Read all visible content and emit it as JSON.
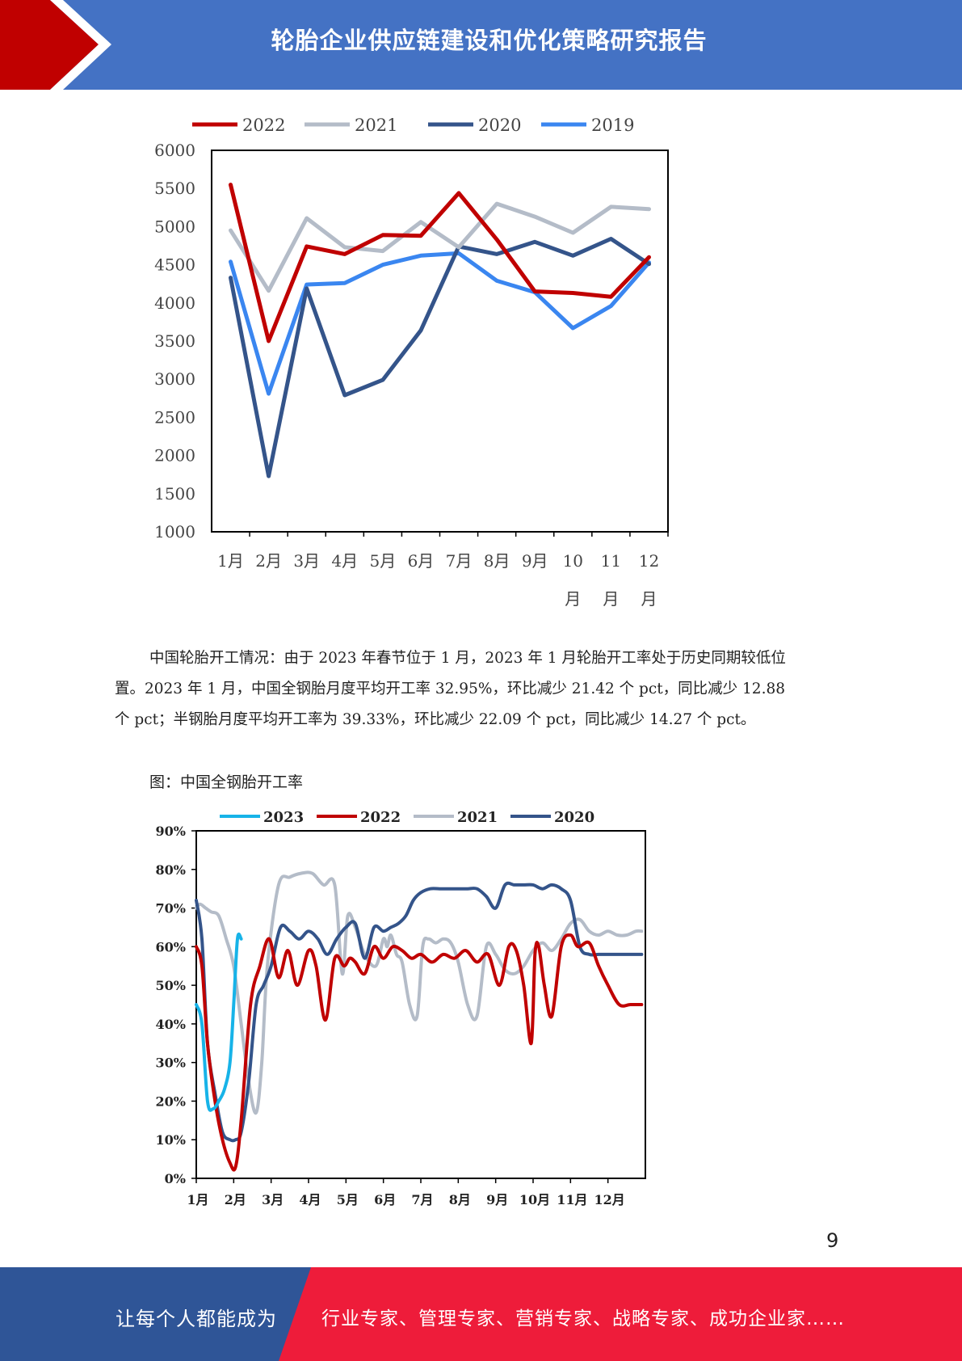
{
  "header": {
    "title": "轮胎企业供应链建设和优化策略研究报告"
  },
  "chart1": {
    "legend": [
      "2022",
      "2021",
      "2020",
      "2019"
    ],
    "yticks": [
      "6000",
      "5500",
      "5000",
      "4500",
      "4000",
      "3500",
      "3000",
      "2500",
      "2000",
      "1500",
      "1000"
    ],
    "xticks": [
      "1月",
      "2月",
      "3月",
      "4月",
      "5月",
      "6月",
      "7月",
      "8月",
      "9月",
      "10月",
      "11月",
      "12月"
    ]
  },
  "paragraph": {
    "line1": "中国轮胎开工情况：由于 2023 年春节位于 1 月，2023 年 1 月轮胎开工率处于历史同期较低位",
    "line2": "置。2023 年 1 月，中国全钢胎月度平均开工率 32.95%，环比减少 21.42 个 pct，同比减少 12.88",
    "line3": "个 pct；半钢胎月度平均开工率为 39.33%，环比减少 22.09 个 pct，同比减少 14.27 个 pct。"
  },
  "caption": "图：中国全钢胎开工率",
  "chart2": {
    "legend": [
      "2023",
      "2022",
      "2021",
      "2020"
    ],
    "yticks": [
      "90%",
      "80%",
      "70%",
      "60%",
      "50%",
      "40%",
      "30%",
      "20%",
      "10%",
      "0%"
    ],
    "xticks": [
      "1月",
      "2月"
    ]
  },
  "page_number": "9",
  "footer": {
    "left": "让每个人都能成为",
    "right": "行业专家、管理专家、营销专家、战略专家、成功企业家……"
  },
  "colors": {
    "header_blue": "#4472c4",
    "header_red": "#c00000",
    "footer_blue": "#2f5597",
    "footer_red": "#ee1c3a",
    "y2022": "#c00000",
    "y2021": "#b4bcc8",
    "y2020": "#34548a",
    "y2019": "#3a86f0",
    "y2023": "#17b3e8"
  },
  "chart_data": [
    {
      "type": "line",
      "title": "",
      "xlabel": "",
      "ylabel": "",
      "categories": [
        "1月",
        "2月",
        "3月",
        "4月",
        "5月",
        "6月",
        "7月",
        "8月",
        "9月",
        "10月",
        "11月",
        "12月"
      ],
      "ylim": [
        1000,
        6000
      ],
      "legend": "top",
      "series": [
        {
          "name": "2022",
          "color": "#c00000",
          "values": [
            5550,
            3500,
            4740,
            4640,
            4890,
            4880,
            5440,
            4830,
            4150,
            4130,
            4080,
            4600
          ]
        },
        {
          "name": "2021",
          "color": "#b4bcc8",
          "values": [
            4950,
            4160,
            5110,
            4730,
            4680,
            5060,
            4730,
            5300,
            5130,
            4920,
            5260,
            5230
          ]
        },
        {
          "name": "2020",
          "color": "#34548a",
          "values": [
            4330,
            1730,
            4190,
            2790,
            2990,
            3640,
            4740,
            4640,
            4800,
            4620,
            4840,
            4510
          ]
        },
        {
          "name": "2019",
          "color": "#3a86f0",
          "values": [
            4540,
            2810,
            4240,
            4260,
            4500,
            4620,
            4650,
            4290,
            4140,
            3670,
            3960,
            4530
          ]
        }
      ]
    },
    {
      "type": "line",
      "title": "",
      "xlabel": "",
      "ylabel": "",
      "categories": [
        "1月",
        "2月",
        "3月",
        "4月",
        "5月",
        "6月",
        "7月",
        "8月",
        "9月",
        "10月",
        "11月",
        "12月"
      ],
      "ylim": [
        0,
        90
      ],
      "legend": "top",
      "series": [
        {
          "name": "2023",
          "color": "#17b3e8",
          "x": [
            0.0,
            0.15,
            0.3,
            0.45,
            0.6,
            0.75,
            0.9,
            1.0,
            1.1,
            1.2
          ],
          "values": [
            45,
            40,
            20,
            18,
            20,
            23,
            30,
            45,
            62,
            62
          ]
        },
        {
          "name": "2022",
          "color": "#c00000",
          "x": [
            0.0,
            0.15,
            0.3,
            0.5,
            0.7,
            0.9,
            1.05,
            1.2,
            1.45,
            1.7,
            1.95,
            2.2,
            2.45,
            2.7,
            3.0,
            3.2,
            3.45,
            3.7,
            3.95,
            4.1,
            4.25,
            4.5,
            4.75,
            5.0,
            5.25,
            5.5,
            5.75,
            6.0,
            6.3,
            6.6,
            6.9,
            7.2,
            7.5,
            7.8,
            8.1,
            8.35,
            8.55,
            8.75,
            8.95,
            9.05,
            9.15,
            9.3,
            9.5,
            9.75,
            10.0,
            10.2,
            10.5,
            10.75,
            11.0,
            11.3,
            11.6,
            11.9
          ],
          "values": [
            60,
            55,
            35,
            20,
            10,
            4,
            3,
            15,
            45,
            55,
            62,
            52,
            59,
            50,
            59,
            55,
            41,
            57,
            55,
            57,
            56,
            53,
            60,
            57,
            60,
            59,
            57,
            58,
            56,
            58,
            57,
            59,
            56,
            58,
            50,
            60,
            59,
            50,
            35,
            58,
            60,
            50,
            42,
            60,
            63,
            60,
            61,
            55,
            50,
            45,
            45,
            45
          ]
        },
        {
          "name": "2021",
          "color": "#b4bcc8",
          "x": [
            0.0,
            0.1,
            0.25,
            0.4,
            0.6,
            0.8,
            1.0,
            1.2,
            1.4,
            1.6,
            1.75,
            1.9,
            2.2,
            2.5,
            2.8,
            3.1,
            3.4,
            3.7,
            3.9,
            4.05,
            4.25,
            4.5,
            4.8,
            5.0,
            5.1,
            5.2,
            5.35,
            5.5,
            5.7,
            5.9,
            6.05,
            6.2,
            6.4,
            6.6,
            6.8,
            7.0,
            7.25,
            7.5,
            7.75,
            8.0,
            8.25,
            8.5,
            8.75,
            9.0,
            9.25,
            9.5,
            9.75,
            10.0,
            10.25,
            10.5,
            10.75,
            11.0,
            11.25,
            11.5,
            11.75,
            11.9
          ],
          "values": [
            70,
            71,
            70,
            69,
            68,
            62,
            55,
            40,
            25,
            17,
            30,
            55,
            76,
            78,
            79,
            79,
            76,
            76,
            53,
            68,
            65,
            58,
            55,
            62,
            60,
            63,
            58,
            56,
            45,
            42,
            60,
            62,
            61,
            62,
            61,
            56,
            45,
            42,
            60,
            58,
            54,
            53,
            55,
            59,
            61,
            59,
            62,
            66,
            67,
            64,
            63,
            64,
            63,
            63,
            64,
            64
          ]
        },
        {
          "name": "2020",
          "color": "#34548a",
          "x": [
            0.0,
            0.15,
            0.3,
            0.5,
            0.7,
            0.9,
            1.05,
            1.2,
            1.4,
            1.6,
            1.8,
            2.0,
            2.25,
            2.5,
            2.75,
            3.0,
            3.25,
            3.5,
            3.75,
            4.0,
            4.25,
            4.5,
            4.75,
            5.0,
            5.2,
            5.4,
            5.6,
            5.8,
            6.0,
            6.25,
            6.5,
            6.75,
            7.0,
            7.25,
            7.5,
            7.75,
            8.0,
            8.25,
            8.5,
            8.75,
            9.0,
            9.25,
            9.5,
            9.75,
            10.0,
            10.25,
            10.5,
            10.75,
            11.0,
            11.25,
            11.5,
            11.75,
            11.9
          ],
          "values": [
            72,
            62,
            35,
            22,
            12,
            10,
            10,
            12,
            25,
            45,
            50,
            55,
            65,
            64,
            62,
            64,
            62,
            58,
            62,
            65,
            66,
            57,
            65,
            64,
            65,
            66,
            68,
            72,
            74,
            75,
            75,
            75,
            75,
            75,
            75,
            73,
            70,
            76,
            76,
            76,
            76,
            75,
            76,
            75,
            72,
            60,
            58,
            58,
            58,
            58,
            58,
            58,
            58
          ]
        }
      ]
    }
  ]
}
